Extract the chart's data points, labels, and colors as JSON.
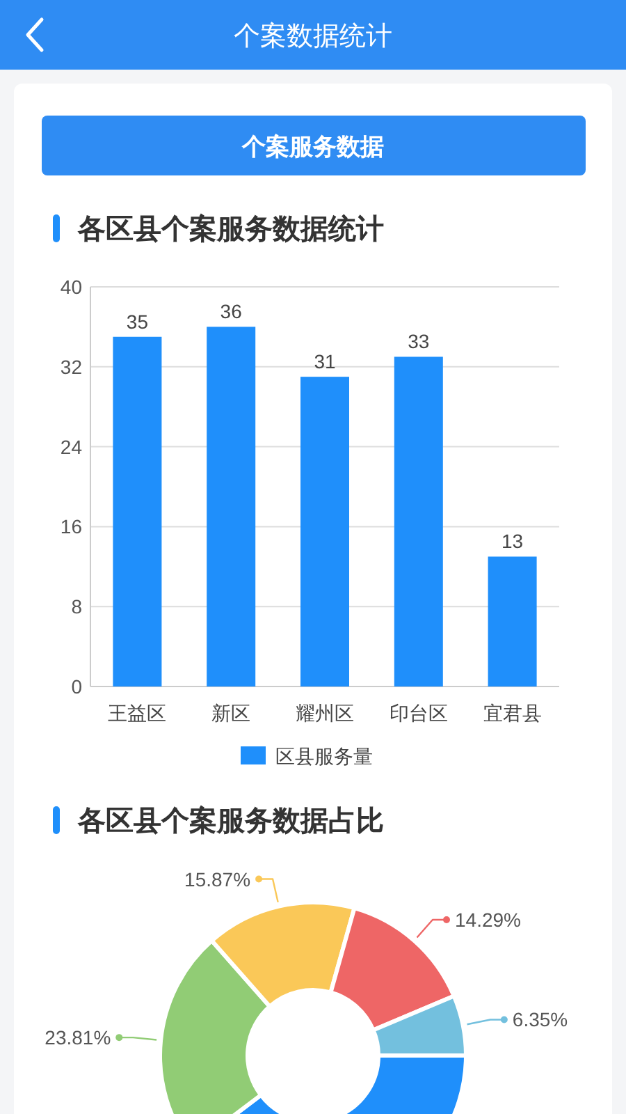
{
  "chart_data": [
    {
      "type": "other",
      "title": "个案数据统计",
      "annotations": [
        "个案服务数据"
      ]
    },
    {
      "type": "bar",
      "title": "各区县个案服务数据统计",
      "categories": [
        "王益区",
        "新区",
        "耀州区",
        "印台区",
        "宜君县"
      ],
      "series": [
        {
          "name": "区县服务量",
          "color": "#1f8ffb",
          "values": [
            35,
            36,
            31,
            33,
            13
          ]
        }
      ],
      "ylim": [
        0,
        40
      ],
      "yticks": [
        0,
        8,
        16,
        24,
        32,
        40
      ],
      "grid": "y",
      "legend": "bottom",
      "data_labels": true
    },
    {
      "type": "donut",
      "title": "各区县个案服务数据占比",
      "categories": [
        null,
        null,
        null,
        null,
        null
      ],
      "values": [
        39.68,
        23.81,
        15.87,
        14.29,
        6.35
      ],
      "colors": [
        "#1f8ffb",
        "#91cc75",
        "#fac858",
        "#ee6666",
        "#73c0de"
      ],
      "value_labels": [
        null,
        "23.81%",
        "15.87%",
        "14.29%",
        "6.35%"
      ]
    }
  ]
}
